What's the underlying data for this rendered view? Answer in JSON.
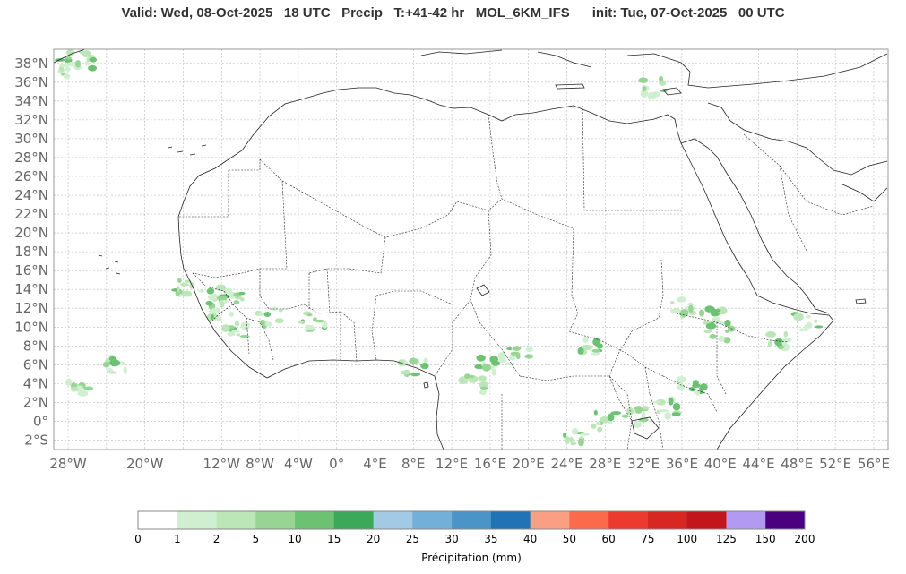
{
  "title": "Valid: Wed, 08-Oct-2025   18 UTC   Precip   T:+41-42 hr   MOL_6KM_IFS      init: Tue, 07-Oct-2025   00 UTC",
  "map": {
    "lat_labels": [
      "38°N",
      "36°N",
      "34°N",
      "32°N",
      "30°N",
      "28°N",
      "26°N",
      "24°N",
      "22°N",
      "20°N",
      "18°N",
      "16°N",
      "14°N",
      "12°N",
      "10°N",
      "8°N",
      "6°N",
      "4°N",
      "2°N",
      "0°",
      "2°S"
    ],
    "lon_labels": [
      "28°W",
      "20°W",
      "12°W",
      "8°W",
      "4°W",
      "0°",
      "4°E",
      "8°E",
      "12°E",
      "16°E",
      "20°E",
      "24°E",
      "28°E",
      "32°E",
      "36°E",
      "40°E",
      "44°E",
      "48°E",
      "52°E",
      "56°E"
    ],
    "lat_values": [
      38,
      36,
      34,
      32,
      30,
      28,
      26,
      24,
      22,
      20,
      18,
      16,
      14,
      12,
      10,
      8,
      6,
      4,
      2,
      0,
      -2
    ],
    "lon_values": [
      -28,
      -20,
      -12,
      -8,
      -4,
      0,
      4,
      8,
      12,
      16,
      20,
      24,
      28,
      32,
      36,
      40,
      44,
      48,
      52,
      56
    ],
    "extent": {
      "lon_min": -29.5,
      "lon_max": 57.5,
      "lat_min": -3,
      "lat_max": 39.5
    }
  },
  "colorbar": {
    "label": "Précipitation (mm)",
    "ticks": [
      "0",
      "1",
      "2",
      "5",
      "10",
      "15",
      "20",
      "25",
      "30",
      "35",
      "40",
      "50",
      "60",
      "75",
      "100",
      "125",
      "150",
      "200"
    ],
    "colors": [
      "#ffffff",
      "#d0efd1",
      "#bde6b8",
      "#98d594",
      "#6cc172",
      "#3ca85a",
      "#a2cae5",
      "#72afd9",
      "#4a94c8",
      "#2272b6",
      "#fb9f84",
      "#fb6b4b",
      "#ed3a2e",
      "#d82622",
      "#c3161c",
      "#b29af2",
      "#4a007f"
    ]
  },
  "precip_areas": [
    {
      "lon": -28,
      "lat": 37.5
    },
    {
      "lon": -26.7,
      "lat": 38.3
    },
    {
      "lon": -15.5,
      "lat": 14
    },
    {
      "lon": -13,
      "lat": 13
    },
    {
      "lon": -12,
      "lat": 11.5
    },
    {
      "lon": -11,
      "lat": 13.5
    },
    {
      "lon": -10.5,
      "lat": 9.5
    },
    {
      "lon": -7,
      "lat": 11
    },
    {
      "lon": -2.5,
      "lat": 10.5
    },
    {
      "lon": 8,
      "lat": 5.5
    },
    {
      "lon": 14.5,
      "lat": 4
    },
    {
      "lon": 16,
      "lat": 6
    },
    {
      "lon": 19,
      "lat": 7
    },
    {
      "lon": 26.5,
      "lat": 8
    },
    {
      "lon": 28,
      "lat": 0
    },
    {
      "lon": 31,
      "lat": 0.5
    },
    {
      "lon": 34.5,
      "lat": 1.5
    },
    {
      "lon": 37,
      "lat": 3.5
    },
    {
      "lon": 39,
      "lat": 11
    },
    {
      "lon": 36,
      "lat": 12
    },
    {
      "lon": 40,
      "lat": 9.5
    },
    {
      "lon": 46,
      "lat": 8.5
    },
    {
      "lon": 49,
      "lat": 10.5
    },
    {
      "lon": 25,
      "lat": -2
    },
    {
      "lon": -23,
      "lat": 6
    },
    {
      "lon": -27,
      "lat": 3.5
    },
    {
      "lon": 33,
      "lat": 35.5
    }
  ]
}
